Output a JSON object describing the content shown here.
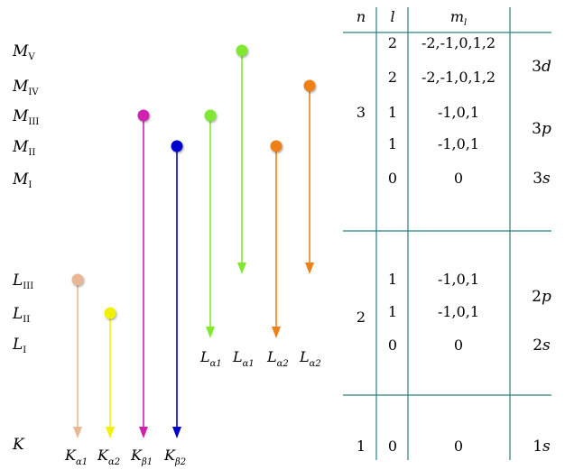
{
  "levels": [
    {
      "id": "MV",
      "letter": "M",
      "sub": "V"
    },
    {
      "id": "MIV",
      "letter": "M",
      "sub": "IV"
    },
    {
      "id": "MIII",
      "letter": "M",
      "sub": "III"
    },
    {
      "id": "MII",
      "letter": "M",
      "sub": "II"
    },
    {
      "id": "MI",
      "letter": "M",
      "sub": "I"
    },
    {
      "id": "LIII",
      "letter": "L",
      "sub": "III"
    },
    {
      "id": "LII",
      "letter": "L",
      "sub": "II"
    },
    {
      "id": "LI",
      "letter": "L",
      "sub": "I"
    },
    {
      "id": "K",
      "letter": "K",
      "sub": ""
    }
  ],
  "transitions": [
    {
      "id": "k-alpha1",
      "from": "LIII",
      "to": "K",
      "color": "#e8b896",
      "letter": "K",
      "sub": "α1"
    },
    {
      "id": "k-alpha2",
      "from": "LII",
      "to": "K",
      "color": "#f2f200",
      "letter": "K",
      "sub": "α2"
    },
    {
      "id": "k-beta1",
      "from": "MIII",
      "to": "K",
      "color": "#d020b0",
      "letter": "K",
      "sub": "β1"
    },
    {
      "id": "k-beta2",
      "from": "MII",
      "to": "K",
      "color": "#0000cc",
      "letter": "K",
      "sub": "β2"
    },
    {
      "id": "l-alpha1-a",
      "from": "MIII",
      "to": "LI",
      "color": "#80e830",
      "letter": "L",
      "sub": "α1"
    },
    {
      "id": "l-alpha1-b",
      "from": "MV",
      "to": "LIII",
      "color": "#80e830",
      "letter": "L",
      "sub": "α1"
    },
    {
      "id": "l-alpha2-a",
      "from": "MII",
      "to": "LI",
      "color": "#f08018",
      "letter": "L",
      "sub": "α2"
    },
    {
      "id": "l-alpha2-b",
      "from": "MIV",
      "to": "LIII",
      "color": "#f08018",
      "letter": "L",
      "sub": "α2"
    }
  ],
  "table": {
    "headers": {
      "n": "n",
      "l": "l",
      "ml_letter": "m",
      "ml_sub": "l"
    },
    "n_values": [
      "3",
      "2",
      "1"
    ],
    "l_values": [
      "2",
      "2",
      "1",
      "1",
      "0",
      "1",
      "1",
      "0",
      "0"
    ],
    "ml_values": [
      "-2,-1,0,1,2",
      "-2,-1,0,1,2",
      "-1,0,1",
      "-1,0,1",
      "0",
      "-1,0,1",
      "-1,0,1",
      "0",
      "0"
    ],
    "subshells": [
      {
        "num": "3",
        "letter": "d"
      },
      {
        "num": "3",
        "letter": "p"
      },
      {
        "num": "3",
        "letter": "s"
      },
      {
        "num": "2",
        "letter": "p"
      },
      {
        "num": "2",
        "letter": "s"
      },
      {
        "num": "1",
        "letter": "s"
      }
    ]
  },
  "colors": {
    "table_line": "#2e7f80",
    "level_line": "#dadada"
  }
}
